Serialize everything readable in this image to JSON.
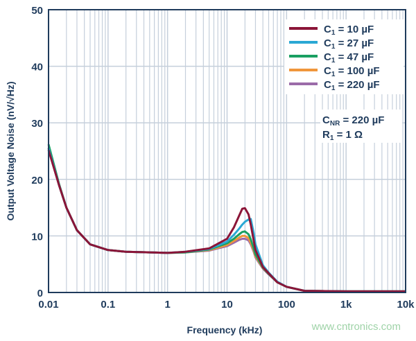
{
  "chart_data": {
    "type": "line",
    "xlabel": "Frequency (kHz)",
    "ylabel": "Output Voltage Noise (nV/√Hz)",
    "xscale": "log",
    "xlim": [
      0.01,
      10000
    ],
    "ylim": [
      0,
      50
    ],
    "grid": true,
    "legend_placement": "top-right",
    "x_ticks": [
      {
        "v": 0.01,
        "l": "0.01"
      },
      {
        "v": 0.1,
        "l": "0.1"
      },
      {
        "v": 1,
        "l": "1"
      },
      {
        "v": 10,
        "l": "10"
      },
      {
        "v": 100,
        "l": "100"
      },
      {
        "v": 1000,
        "l": "1k"
      },
      {
        "v": 10000,
        "l": "10k"
      }
    ],
    "y_ticks": [
      0,
      10,
      20,
      30,
      40,
      50
    ],
    "annotation": {
      "line1_main": "C",
      "line1_sub": "NR",
      "line1_rest": " = 220 µF",
      "line2_main": "R",
      "line2_sub": "1",
      "line2_rest": " = 1 Ω"
    },
    "x": [
      0.01,
      0.015,
      0.02,
      0.03,
      0.05,
      0.1,
      0.2,
      0.5,
      1,
      2,
      5,
      10,
      13,
      16,
      18,
      20,
      23,
      25,
      28,
      30,
      40,
      50,
      70,
      100,
      200,
      1000,
      10000
    ],
    "series": [
      {
        "name_main": "C",
        "name_sub": "1",
        "name_rest": " = 220 µF",
        "color": "#9b6ba8",
        "values": [
          25.5,
          19,
          15,
          11,
          8.5,
          7.5,
          7.2,
          7.1,
          7,
          7.1,
          7.4,
          8.2,
          8.8,
          9.3,
          9.5,
          9.5,
          9.2,
          8.5,
          7.2,
          6.2,
          4.2,
          3.2,
          1.8,
          1,
          0.3,
          0.2,
          0.2
        ]
      },
      {
        "name_main": "C",
        "name_sub": "1",
        "name_rest": " = 100 µF",
        "color": "#f0963c",
        "values": [
          25.5,
          19,
          15,
          11,
          8.5,
          7.5,
          7.2,
          7.1,
          7,
          7.1,
          7.5,
          8.4,
          9.1,
          9.7,
          10,
          10,
          9.6,
          8.8,
          7.4,
          6.4,
          4.3,
          3.3,
          1.8,
          1,
          0.3,
          0.2,
          0.2
        ]
      },
      {
        "name_main": "C",
        "name_sub": "1",
        "name_rest": " = 47 µF",
        "color": "#1aa062",
        "values": [
          26.2,
          19.2,
          15,
          11,
          8.5,
          7.5,
          7.2,
          7.1,
          7,
          7.1,
          7.6,
          8.7,
          9.5,
          10.3,
          10.7,
          10.8,
          10.3,
          9.4,
          7.8,
          6.7,
          4.4,
          3.3,
          1.8,
          1,
          0.3,
          0.2,
          0.2
        ]
      },
      {
        "name_main": "C",
        "name_sub": "1",
        "name_rest": " = 27 µF",
        "color": "#2aa8d4",
        "values": [
          25.5,
          19,
          15,
          11,
          8.5,
          7.5,
          7.2,
          7.1,
          7,
          7.2,
          7.7,
          9,
          10.2,
          11.3,
          12,
          12.5,
          12.9,
          13,
          10.5,
          8.5,
          4.8,
          3.5,
          1.9,
          1,
          0.3,
          0.2,
          0.2
        ]
      },
      {
        "name_main": "C",
        "name_sub": "1",
        "name_rest": " = 10 µF",
        "color": "#8b1538",
        "values": [
          25.2,
          19,
          15,
          11,
          8.5,
          7.5,
          7.2,
          7.1,
          7,
          7.2,
          7.8,
          9.5,
          11.5,
          13.6,
          14.8,
          14.9,
          13.8,
          12,
          9.2,
          7.5,
          4.5,
          3.4,
          1.8,
          1,
          0.3,
          0.2,
          0.2
        ]
      }
    ]
  },
  "watermark": "www.cntronics.com"
}
